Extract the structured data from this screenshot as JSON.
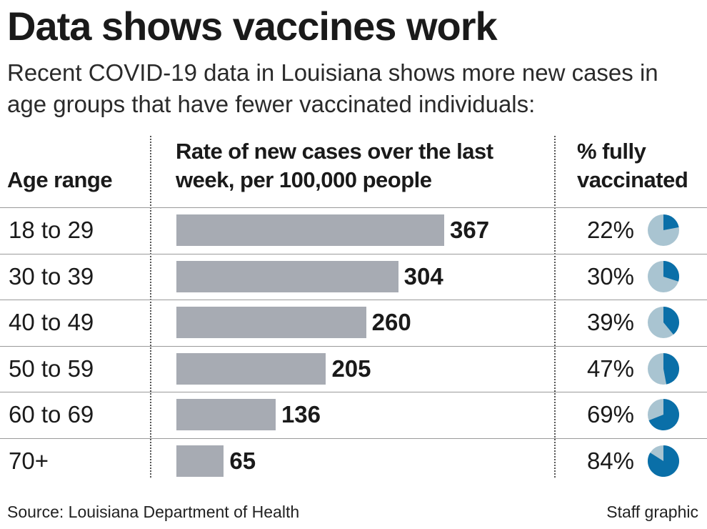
{
  "title": "Data shows vaccines work",
  "subtitle": "Recent COVID-19 data in Louisiana shows more new cases in age groups that have fewer vaccinated individuals:",
  "headers": {
    "age": "Age range",
    "rate": "Rate of new cases over the last week, per 100,000 people",
    "vaccinated": "% fully vaccinated"
  },
  "colors": {
    "bar": "#a7abb3",
    "pie_vaccinated": "#0a6fa8",
    "pie_rest": "#a9c4d1"
  },
  "chart_data": {
    "type": "bar",
    "orientation": "horizontal",
    "categories": [
      "18 to 29",
      "30 to 39",
      "40 to 49",
      "50 to 59",
      "60 to 69",
      "70+"
    ],
    "series": [
      {
        "name": "Rate of new cases over the last week, per 100,000 people",
        "values": [
          367,
          304,
          260,
          205,
          136,
          65
        ],
        "labels": [
          "367",
          "304",
          "260",
          "205",
          "136",
          "65"
        ]
      },
      {
        "name": "% fully vaccinated",
        "values": [
          22,
          30,
          39,
          47,
          69,
          84
        ],
        "labels": [
          "22%",
          "30%",
          "39%",
          "47%",
          "69%",
          "84%"
        ]
      }
    ],
    "xlim": [
      0,
      367
    ],
    "grid": false,
    "legend": "none"
  },
  "footer": {
    "source": "Source: Louisiana Department of Health",
    "credit": "Staff graphic"
  }
}
